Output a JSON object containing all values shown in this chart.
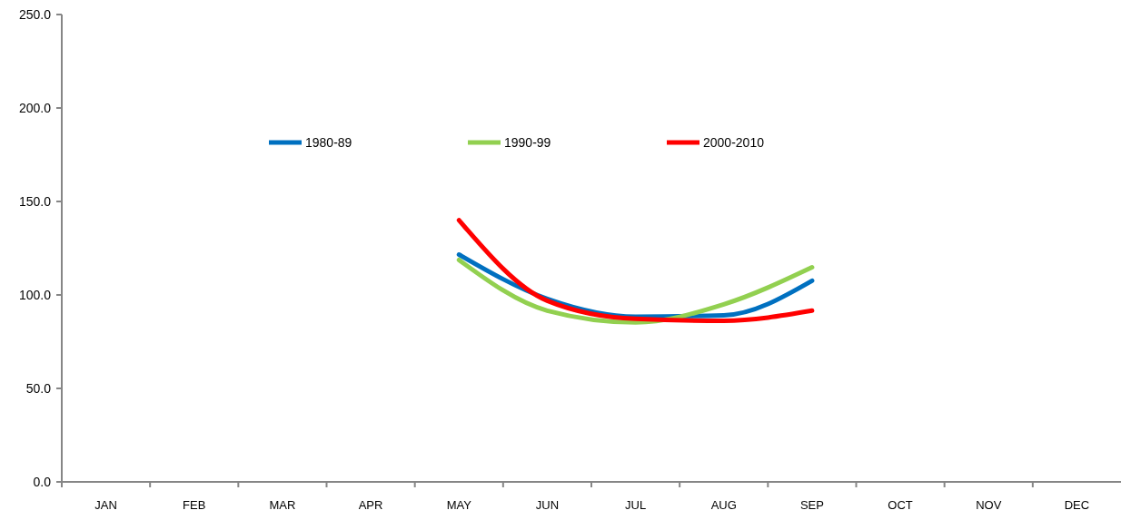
{
  "chart_data": {
    "type": "line",
    "categories": [
      "JAN",
      "FEB",
      "MAR",
      "APR",
      "MAY",
      "JUN",
      "JUL",
      "AUG",
      "SEP",
      "OCT",
      "NOV",
      "DEC"
    ],
    "series": [
      {
        "name": "1980-89",
        "color": "#0070c0",
        "values": [
          null,
          null,
          null,
          null,
          121.6,
          97.9,
          88.4,
          89.1,
          107.6,
          null,
          null,
          null
        ]
      },
      {
        "name": "1990-99",
        "color": "#92d050",
        "values": [
          null,
          null,
          null,
          null,
          118.7,
          91.6,
          85.3,
          95.0,
          114.8,
          null,
          null,
          null
        ]
      },
      {
        "name": "2000-2010",
        "color": "#ff0000",
        "values": [
          null,
          null,
          null,
          null,
          140.0,
          96.9,
          87.2,
          86.2,
          91.6,
          null,
          null,
          null
        ]
      }
    ],
    "ylim": [
      0,
      250
    ],
    "yticks": [
      {
        "value": 0,
        "label": "0.0"
      },
      {
        "value": 50,
        "label": "50.0"
      },
      {
        "value": 100,
        "label": "100.0"
      },
      {
        "value": 150,
        "label": "150.0"
      },
      {
        "value": 200,
        "label": "200.0"
      },
      {
        "value": 250,
        "label": "250.0"
      }
    ],
    "grid": false,
    "legend": "top",
    "marker": "none",
    "line_style": "solid"
  }
}
